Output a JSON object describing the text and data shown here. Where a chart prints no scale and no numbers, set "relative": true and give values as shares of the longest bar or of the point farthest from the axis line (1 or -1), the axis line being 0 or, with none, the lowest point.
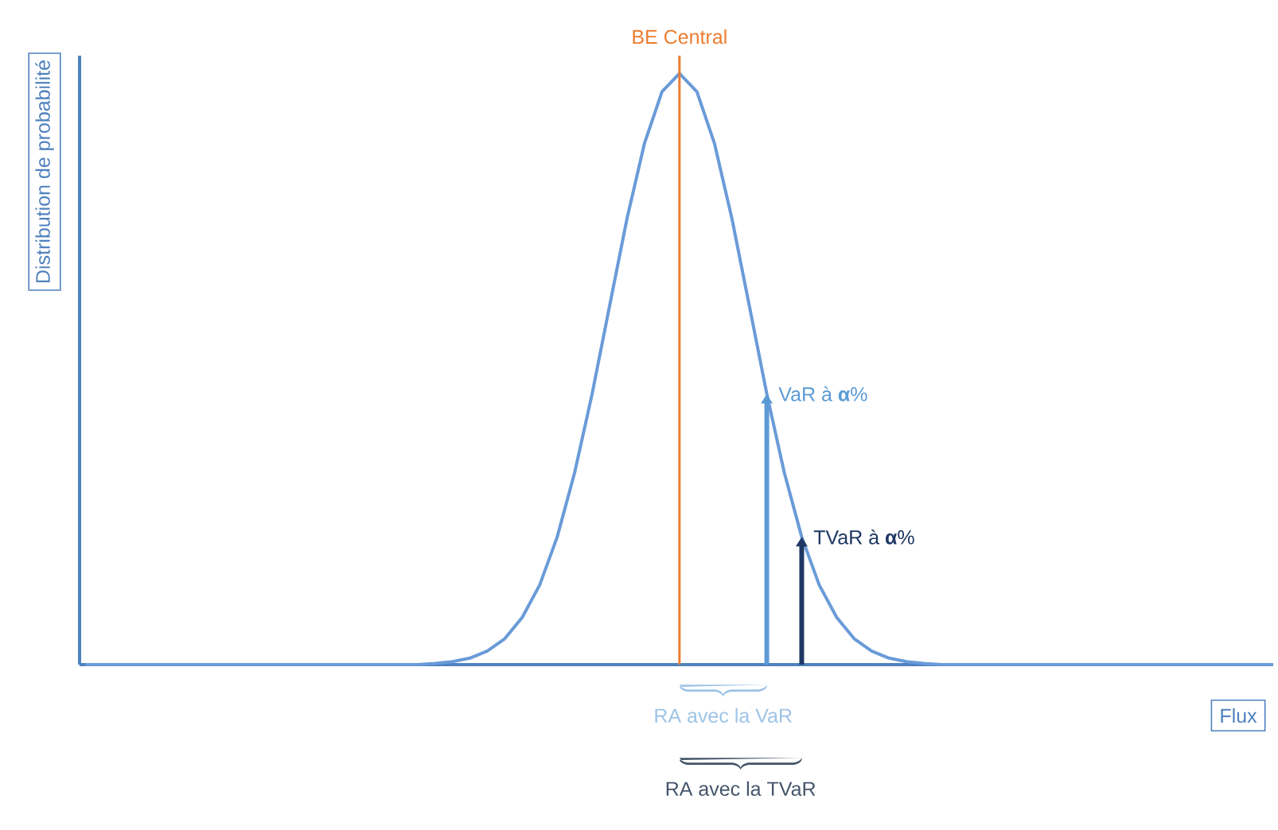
{
  "chart_data": {
    "type": "line",
    "relative": true,
    "tick_labels": false,
    "xlabel": "Flux",
    "ylabel": "Distribution de probabilité",
    "categories": [
      null,
      null,
      null,
      null,
      null,
      null,
      null,
      null,
      null,
      null,
      null,
      null,
      null,
      null,
      null,
      null,
      null,
      null,
      null,
      null,
      null,
      null,
      null,
      null,
      null,
      null,
      null,
      null,
      null,
      null,
      null,
      null,
      null,
      null,
      null,
      null,
      null,
      null,
      null,
      null,
      null,
      null,
      null,
      null,
      null,
      null,
      null,
      null,
      null,
      null,
      null,
      null,
      null,
      null,
      null,
      null,
      null,
      null,
      null,
      null,
      null,
      null,
      null,
      null,
      null,
      null,
      null,
      null,
      null
    ],
    "series": [
      {
        "color": "#6a9bd8",
        "values": [
          0,
          0,
          0,
          0,
          0,
          0,
          0,
          0,
          0,
          0,
          0,
          0,
          0,
          0,
          0,
          0,
          0,
          0,
          0,
          0,
          0.002,
          0.005,
          0.011,
          0.023,
          0.044,
          0.08,
          0.135,
          0.216,
          0.325,
          0.458,
          0.607,
          0.755,
          0.882,
          0.969,
          1,
          0.969,
          0.882,
          0.755,
          0.607,
          0.458,
          0.325,
          0.216,
          0.135,
          0.08,
          0.044,
          0.023,
          0.011,
          0.005,
          0.002,
          0,
          0,
          0,
          0,
          0,
          0,
          0,
          0,
          0,
          0,
          0,
          0,
          0,
          0,
          0,
          0,
          0,
          0,
          0,
          0
        ]
      }
    ],
    "annotations": [
      "BE Central",
      "VaR à **α**%",
      "TVaR à **α**%",
      "RA avec la VaR",
      "RA avec la TVaR"
    ]
  }
}
